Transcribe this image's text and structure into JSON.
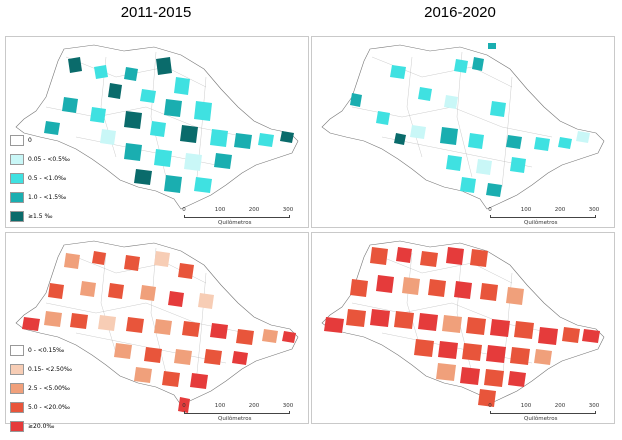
{
  "columns": [
    {
      "title": "2011-2015"
    },
    {
      "title": "2016-2020"
    }
  ],
  "top_legend": {
    "items": [
      {
        "label": "0",
        "color": "#ffffff"
      },
      {
        "label": "0.05 - <0.5‰",
        "color": "#c9f7f7"
      },
      {
        "label": "0.5 - <1.0‰",
        "color": "#3fe1e1"
      },
      {
        "label": "1.0 - <1.5‰",
        "color": "#1aaeb0"
      },
      {
        "label": "≥1.5 ‰",
        "color": "#0a6b6b"
      }
    ]
  },
  "bottom_legend": {
    "items": [
      {
        "label": "0 - <0.15‰",
        "color": "#ffffff"
      },
      {
        "label": "0.15- <2.50‰",
        "color": "#f7cdb5"
      },
      {
        "label": "2.5 - <5.00‰",
        "color": "#f0a07b"
      },
      {
        "label": "5.0 - <20.0‰",
        "color": "#e8553b"
      },
      {
        "label": "≥20.0‰",
        "color": "#e53b3b"
      }
    ]
  },
  "scalebar": {
    "ticks": [
      "0",
      "100",
      "200",
      "300"
    ],
    "unit": "Quilômetros"
  }
}
